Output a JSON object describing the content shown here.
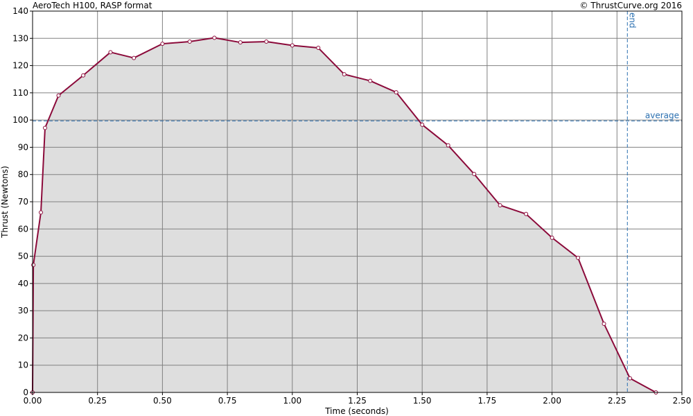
{
  "header": {
    "title": "AeroTech H100, RASP format",
    "copyright": "© ThrustCurve.org 2016"
  },
  "chart_data": {
    "type": "area",
    "title": "AeroTech H100, RASP format",
    "xlabel": "Time (seconds)",
    "ylabel": "Thrust (Newtons)",
    "xlim": [
      0,
      2.5
    ],
    "ylim": [
      0,
      140
    ],
    "x_ticks": [
      "0.00",
      "0.25",
      "0.50",
      "0.75",
      "1.00",
      "1.25",
      "1.50",
      "1.75",
      "2.00",
      "2.25",
      "2.50"
    ],
    "y_ticks": [
      "0",
      "10",
      "20",
      "30",
      "40",
      "50",
      "60",
      "70",
      "80",
      "90",
      "100",
      "110",
      "120",
      "130",
      "140"
    ],
    "grid": true,
    "series": [
      {
        "x": [
          0.0,
          0.003,
          0.032,
          0.048,
          0.1,
          0.195,
          0.3,
          0.39,
          0.5,
          0.605,
          0.7,
          0.8,
          0.9,
          1.0,
          1.1,
          1.2,
          1.3,
          1.4,
          1.5,
          1.6,
          1.7,
          1.8,
          1.9,
          2.0,
          2.1,
          2.2,
          2.3,
          2.4
        ],
        "y": [
          0,
          46.8,
          66.1,
          97.1,
          109.0,
          116.4,
          124.9,
          122.8,
          128.0,
          128.8,
          130.2,
          128.5,
          128.8,
          127.4,
          126.5,
          116.8,
          114.4,
          110.2,
          98.3,
          90.7,
          80.2,
          68.7,
          65.5,
          56.8,
          49.4,
          25.2,
          5.2,
          0
        ]
      }
    ],
    "reference_lines": {
      "average": {
        "value": 99.7,
        "label": "average"
      },
      "end": {
        "value": 2.29,
        "label": "end"
      }
    },
    "colors": {
      "line": "#8b0a3a",
      "fill": "#dedede",
      "grid": "#808080",
      "reference": "#2a6fb0"
    }
  }
}
